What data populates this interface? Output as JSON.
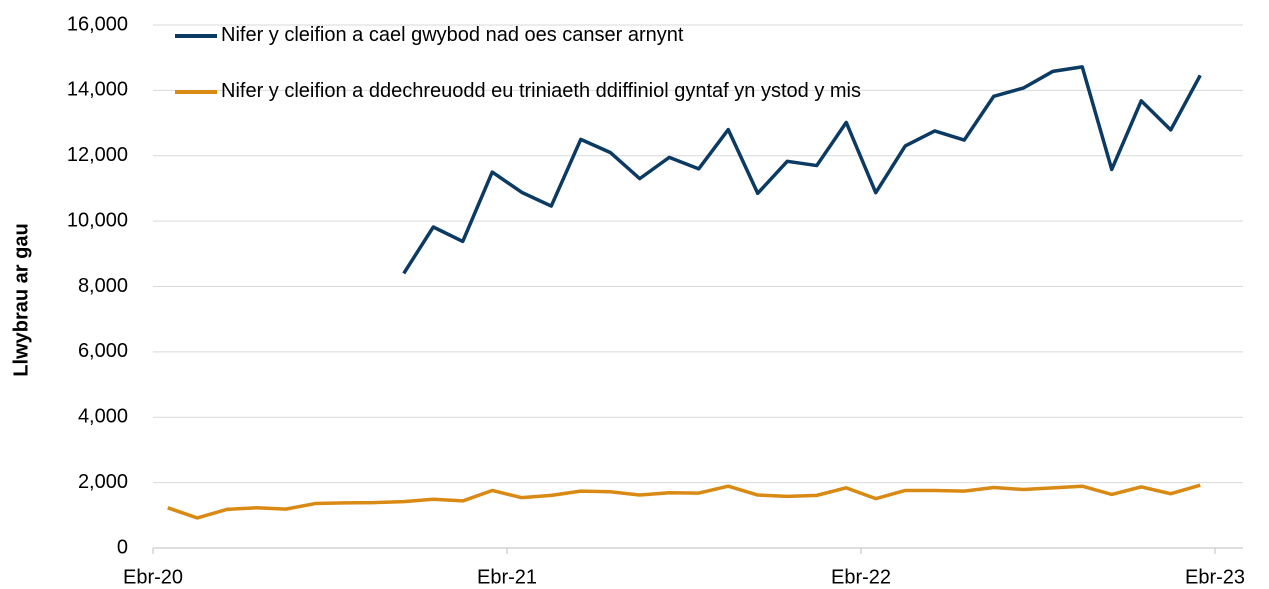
{
  "chart_data": {
    "type": "line",
    "y_label": "Llwybrau ar gau",
    "x": [
      0.5,
      1.5,
      2.5,
      3.5,
      4.5,
      5.5,
      6.5,
      7.5,
      8.5,
      9.5,
      10.5,
      11.5,
      12.5,
      13.5,
      14.5,
      15.5,
      16.5,
      17.5,
      18.5,
      19.5,
      20.5,
      21.5,
      22.5,
      23.5,
      24.5,
      25.5,
      26.5,
      27.5,
      28.5,
      29.5,
      30.5,
      31.5,
      32.5,
      33.5,
      34.5,
      35.5
    ],
    "xlim": [
      0,
      36
    ],
    "xticks": [
      {
        "value": 0,
        "label": "Ebr-20"
      },
      {
        "value": 12,
        "label": "Ebr-21"
      },
      {
        "value": 24,
        "label": "Ebr-22"
      },
      {
        "value": 36,
        "label": "Ebr-23"
      }
    ],
    "ylim": [
      0,
      16000
    ],
    "yticks": [
      0,
      {
        "value": 2000,
        "label": "2,000"
      },
      {
        "value": 4000,
        "label": "4,000"
      },
      {
        "value": 6000,
        "label": "6,000"
      },
      {
        "value": 8000,
        "label": "8,000"
      },
      {
        "value": 10000,
        "label": "10,000"
      },
      {
        "value": 12000,
        "label": "12,000"
      },
      {
        "value": 14000,
        "label": "14,000"
      },
      {
        "value": 16000,
        "label": "16,000"
      }
    ],
    "grid": true,
    "legend": "top-left",
    "series": [
      {
        "name": "Nifer y cleifion a cael gwybod nad oes canser arnynt",
        "color": "#0b3a63",
        "values": [
          null,
          null,
          null,
          null,
          null,
          null,
          null,
          null,
          8400,
          9820,
          9380,
          11500,
          10880,
          10460,
          12500,
          12100,
          11300,
          11950,
          11600,
          12800,
          10850,
          11830,
          11700,
          13020,
          10870,
          12300,
          12760,
          12480,
          13820,
          14070,
          14580,
          14720,
          11580,
          13680,
          12790,
          14460
        ]
      },
      {
        "name": "Nifer y cleifion a ddechreuodd eu triniaeth ddiffiniol gyntaf yn ystod y mis",
        "color": "#d98a14",
        "values": [
          1230,
          920,
          1180,
          1230,
          1190,
          1360,
          1380,
          1390,
          1420,
          1490,
          1440,
          1760,
          1540,
          1610,
          1740,
          1720,
          1620,
          1690,
          1680,
          1890,
          1620,
          1580,
          1610,
          1840,
          1510,
          1760,
          1760,
          1740,
          1850,
          1790,
          1840,
          1890,
          1640,
          1870,
          1660,
          1920
        ]
      }
    ]
  }
}
